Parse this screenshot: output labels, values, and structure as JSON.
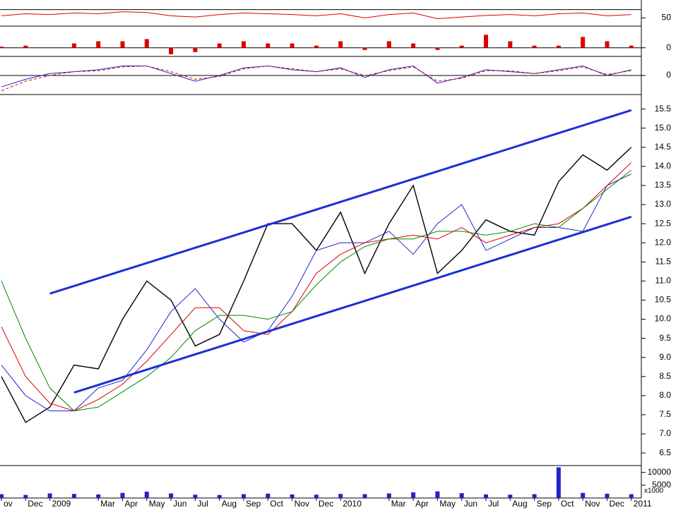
{
  "chart_data": [
    {
      "type": "line",
      "ylim": [
        30,
        90
      ],
      "yticks": [
        50
      ],
      "hlines": [
        70
      ],
      "grid": false,
      "series": [
        {
          "color": "#dd0000",
          "width": 1,
          "style": "solid",
          "values": [
            55,
            60,
            58,
            62,
            60,
            65,
            63,
            55,
            52,
            58,
            62,
            60,
            58,
            55,
            60,
            50,
            58,
            62,
            48,
            52,
            56,
            58,
            55,
            60,
            62,
            55,
            58
          ]
        }
      ]
    },
    {
      "type": "bar",
      "ylim": [
        -0.4,
        1.0
      ],
      "yticks": [
        0
      ],
      "grid": true,
      "color": "#dd0000",
      "values": [
        0.05,
        0.1,
        0,
        0.2,
        0.3,
        0.3,
        0.4,
        -0.3,
        -0.2,
        0.2,
        0.3,
        0.2,
        0.2,
        0.1,
        0.3,
        -0.1,
        0.3,
        0.2,
        -0.1,
        0.1,
        0.6,
        0.3,
        0.1,
        0.1,
        0.5,
        0.3,
        0.1
      ]
    },
    {
      "type": "line",
      "ylim": [
        -1,
        1
      ],
      "yticks": [
        0
      ],
      "grid": true,
      "series": [
        {
          "color": "#2222cc",
          "width": 1,
          "style": "solid",
          "values": [
            -0.6,
            -0.2,
            0.1,
            0.2,
            0.3,
            0.5,
            0.5,
            0.1,
            -0.3,
            0,
            0.4,
            0.5,
            0.3,
            0.2,
            0.4,
            -0.1,
            0.3,
            0.5,
            -0.4,
            -0.1,
            0.3,
            0.2,
            0.1,
            0.3,
            0.5,
            0,
            0.3
          ]
        },
        {
          "color": "#dd0000",
          "width": 1,
          "style": "dashed",
          "values": [
            -0.8,
            -0.3,
            0,
            0.2,
            0.25,
            0.45,
            0.5,
            0.2,
            -0.2,
            -0.05,
            0.35,
            0.5,
            0.35,
            0.2,
            0.35,
            0,
            0.25,
            0.45,
            -0.3,
            -0.15,
            0.25,
            0.25,
            0.1,
            0.25,
            0.45,
            0.05,
            0.25
          ]
        }
      ]
    },
    {
      "type": "line",
      "ylim": [
        6.17,
        15.88
      ],
      "grid": false,
      "yticks": [
        6.5,
        {
          "value": 7,
          "label": "7.0"
        },
        7.5,
        {
          "value": 8,
          "label": "8.0"
        },
        8.5,
        {
          "value": 9,
          "label": "9.0"
        },
        9.5,
        {
          "value": 10,
          "label": "10.0"
        },
        10.5,
        {
          "value": 11,
          "label": "11.0"
        },
        11.5,
        {
          "value": 12,
          "label": "12.0"
        },
        12.5,
        {
          "value": 13,
          "label": "13.0"
        },
        13.5,
        {
          "value": 14,
          "label": "14.0"
        },
        14.5,
        {
          "value": 15,
          "label": "15.0"
        },
        15.5
      ],
      "series": [
        {
          "color": "#000000",
          "width": 1.4,
          "style": "solid",
          "values": [
            8.5,
            7.3,
            7.7,
            8.8,
            8.7,
            10.0,
            11.0,
            10.5,
            9.3,
            9.6,
            11.0,
            12.5,
            12.5,
            11.8,
            12.8,
            11.2,
            12.5,
            13.5,
            11.2,
            11.8,
            12.6,
            12.3,
            12.2,
            13.6,
            14.3,
            13.9,
            14.5
          ]
        },
        {
          "color": "#2222cc",
          "width": 1,
          "style": "solid",
          "values": [
            8.8,
            8.0,
            7.6,
            7.6,
            8.2,
            8.4,
            9.2,
            10.2,
            10.8,
            10.0,
            9.4,
            9.7,
            10.6,
            11.8,
            12.0,
            12.0,
            12.3,
            11.7,
            12.5,
            13.0,
            11.8,
            12.1,
            12.4,
            12.4,
            12.3,
            13.5,
            13.8
          ]
        },
        {
          "color": "#dd0000",
          "width": 1,
          "style": "solid",
          "values": [
            9.8,
            8.5,
            7.8,
            7.6,
            7.9,
            8.3,
            8.9,
            9.6,
            10.3,
            10.3,
            9.7,
            9.6,
            10.2,
            11.2,
            11.7,
            12.0,
            12.1,
            12.2,
            12.1,
            12.4,
            12.0,
            12.2,
            12.4,
            12.5,
            12.9,
            13.5,
            14.1
          ]
        },
        {
          "color": "#008800",
          "width": 1,
          "style": "solid",
          "values": [
            11.0,
            9.5,
            8.2,
            7.6,
            7.7,
            8.1,
            8.5,
            9.0,
            9.7,
            10.1,
            10.1,
            10.0,
            10.2,
            10.9,
            11.5,
            11.9,
            12.1,
            12.1,
            12.3,
            12.3,
            12.2,
            12.3,
            12.5,
            12.4,
            12.9,
            13.4,
            13.9
          ]
        },
        {
          "color": "#1a2fd6",
          "width": 3,
          "style": "solid",
          "values": [
            null,
            null,
            10.67,
            10.87,
            11.07,
            11.27,
            11.47,
            11.67,
            11.87,
            12.07,
            12.27,
            12.47,
            12.67,
            12.87,
            13.07,
            13.27,
            13.47,
            13.67,
            13.87,
            14.07,
            14.27,
            14.47,
            14.67,
            14.87,
            15.07,
            15.27,
            15.47
          ]
        },
        {
          "color": "#1a2fd6",
          "width": 3,
          "style": "solid",
          "values": [
            null,
            null,
            null,
            8.08,
            8.28,
            8.48,
            8.68,
            8.88,
            9.08,
            9.28,
            9.48,
            9.68,
            9.88,
            10.08,
            10.28,
            10.48,
            10.68,
            10.88,
            11.08,
            11.28,
            11.48,
            11.68,
            11.88,
            12.08,
            12.28,
            12.48,
            12.68
          ]
        }
      ]
    },
    {
      "type": "bar",
      "ylim": [
        0,
        12700
      ],
      "yticks": [
        10000,
        5000
      ],
      "grid": false,
      "color": "#2222cc",
      "annotation": "x1000",
      "categories": [
        "ov",
        "Dec",
        "2009",
        null,
        "Mar",
        "Apr",
        "May",
        "Jun",
        "Jul",
        "Aug",
        "Sep",
        "Oct",
        "Nov",
        "Dec",
        "2010",
        null,
        "Mar",
        "Apr",
        "May",
        "Jun",
        "Jul",
        "Aug",
        "Sep",
        "Oct",
        "Nov",
        "Dec",
        "2011"
      ],
      "values": [
        1500,
        1200,
        1800,
        1600,
        1400,
        2000,
        2500,
        1800,
        1300,
        1200,
        1500,
        1700,
        1400,
        1300,
        1600,
        1500,
        1800,
        2200,
        2600,
        1900,
        1400,
        1300,
        1500,
        12000,
        2000,
        1700,
        1500
      ]
    }
  ]
}
